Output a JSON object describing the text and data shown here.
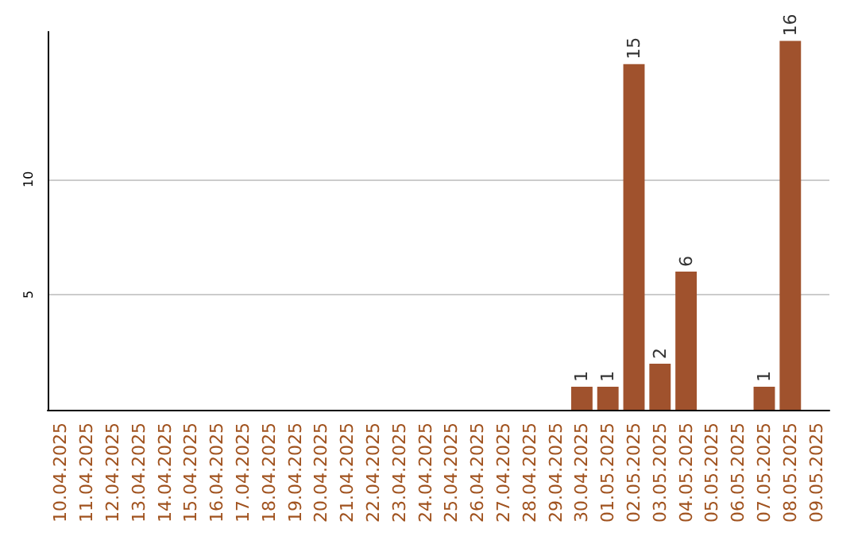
{
  "chart_data": {
    "type": "bar",
    "categories": [
      "10.04.2025",
      "11.04.2025",
      "12.04.2025",
      "13.04.2025",
      "14.04.2025",
      "15.04.2025",
      "16.04.2025",
      "17.04.2025",
      "18.04.2025",
      "19.04.2025",
      "20.04.2025",
      "21.04.2025",
      "22.04.2025",
      "23.04.2025",
      "24.04.2025",
      "25.04.2025",
      "26.04.2025",
      "27.04.2025",
      "28.04.2025",
      "29.04.2025",
      "30.04.2025",
      "01.05.2025",
      "02.05.2025",
      "03.05.2025",
      "04.05.2025",
      "05.05.2025",
      "06.05.2025",
      "07.05.2025",
      "08.05.2025",
      "09.05.2025"
    ],
    "values": [
      0,
      0,
      0,
      0,
      0,
      0,
      0,
      0,
      0,
      0,
      0,
      0,
      0,
      0,
      0,
      0,
      0,
      0,
      0,
      0,
      1,
      1,
      15,
      2,
      6,
      0,
      0,
      1,
      16,
      0
    ],
    "value_labels": [
      null,
      null,
      null,
      null,
      null,
      null,
      null,
      null,
      null,
      null,
      null,
      null,
      null,
      null,
      null,
      null,
      null,
      null,
      null,
      null,
      "1",
      "1",
      "15",
      "2",
      "6",
      null,
      null,
      "1",
      "16",
      null
    ],
    "color": "#a0522d",
    "ylim": [
      0,
      16.4
    ],
    "yticks": [
      5,
      10
    ],
    "grid": "y"
  }
}
